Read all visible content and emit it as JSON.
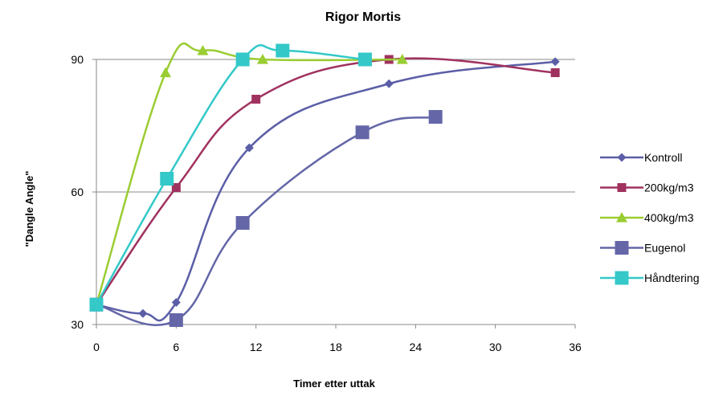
{
  "chart_data": {
    "type": "line",
    "title": "Rigor Mortis",
    "xlabel": "Timer etter uttak",
    "ylabel": "\"Dangle Angle\"",
    "xlim": [
      0,
      36
    ],
    "ylim": [
      30,
      90
    ],
    "xticks": [
      0,
      6,
      12,
      18,
      24,
      30,
      36
    ],
    "yticks": [
      30,
      60,
      90
    ],
    "grid": "horizontal",
    "legend_position": "right",
    "series": [
      {
        "name": "Kontroll",
        "color": "#5B5EA6",
        "marker": "diamond",
        "points": [
          [
            0,
            34.5
          ],
          [
            3.5,
            32.5
          ],
          [
            6,
            35
          ],
          [
            11.5,
            70
          ],
          [
            22,
            84.5
          ],
          [
            34.5,
            89.5
          ]
        ]
      },
      {
        "name": "200kg/m3",
        "color": "#A0325F",
        "marker": "square",
        "points": [
          [
            0,
            34.5
          ],
          [
            6,
            61
          ],
          [
            12,
            81
          ],
          [
            22,
            90
          ],
          [
            34.5,
            87
          ]
        ]
      },
      {
        "name": "400kg/m3",
        "color": "#9ACD32",
        "marker": "triangle",
        "points": [
          [
            0,
            34.5
          ],
          [
            5.2,
            87
          ],
          [
            8,
            92
          ],
          [
            12.5,
            90
          ],
          [
            23,
            90
          ]
        ]
      },
      {
        "name": "Eugenol",
        "color": "#6466A8",
        "marker": "square-large",
        "points": [
          [
            0,
            34.5
          ],
          [
            6,
            31
          ],
          [
            11,
            53
          ],
          [
            20,
            73.5
          ],
          [
            25.5,
            77
          ]
        ]
      },
      {
        "name": "Håndtering",
        "color": "#34C8C8",
        "marker": "square-large",
        "points": [
          [
            0,
            34.5
          ],
          [
            5.3,
            63
          ],
          [
            11,
            90
          ],
          [
            14,
            92
          ],
          [
            20.2,
            90
          ]
        ]
      }
    ]
  }
}
